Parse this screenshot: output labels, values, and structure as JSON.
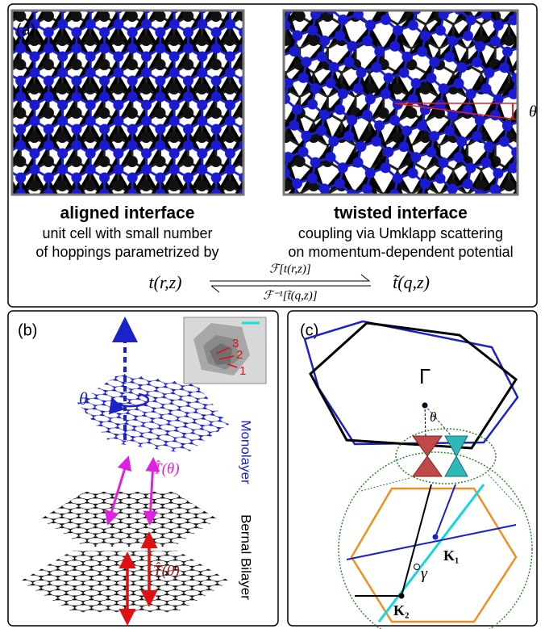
{
  "panel_a": {
    "label": "(a)",
    "theta": "θ",
    "left": {
      "title": "aligned interface",
      "lines": [
        "unit cell with small number",
        "of hoppings parametrized by"
      ]
    },
    "right": {
      "title": "twisted interface",
      "lines": [
        "coupling via Umklapp scattering",
        "on momentum-dependent potential"
      ]
    },
    "equation": {
      "left": "t(r,z)",
      "forward": "ℱ[t(r,z)]",
      "inverse": "ℱ⁻¹[t̃(q,z)]",
      "right": "t̃(q,z)"
    }
  },
  "panel_b": {
    "label": "(b)",
    "theta": "θ",
    "inset_labels": [
      "3",
      "2",
      "1"
    ],
    "monolayer": "Monolayer",
    "bilayer": "Bernal Bilayer",
    "t_theta": "T̂(θ)",
    "t_zero": "T̂(0)"
  },
  "panel_c": {
    "label": "(c)",
    "gamma_point": "Γ",
    "theta": "θ",
    "k1": "K₁",
    "gamma": "γ",
    "k2": "K₂"
  }
}
